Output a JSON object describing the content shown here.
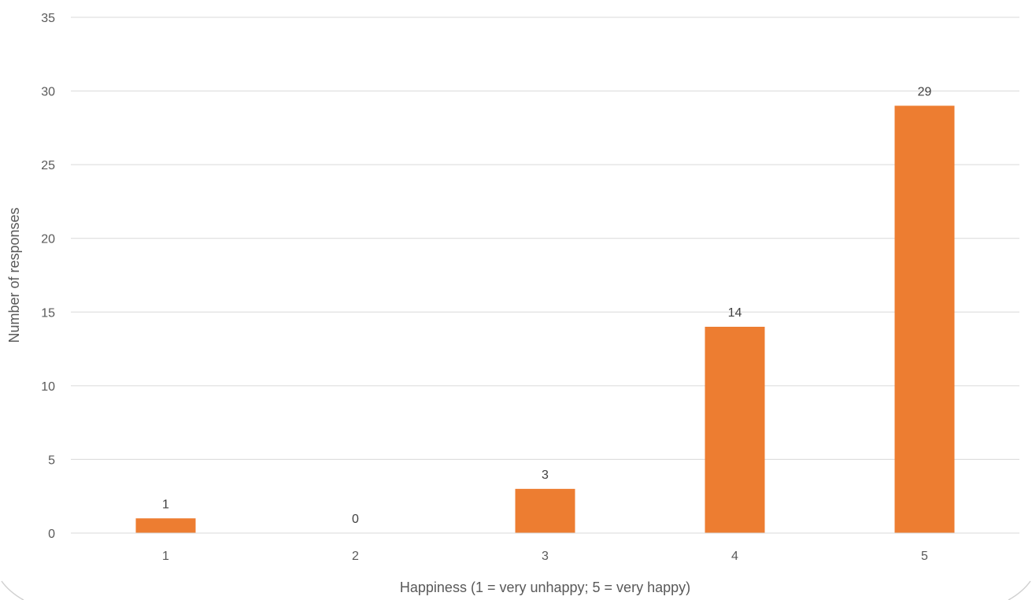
{
  "chart_data": {
    "type": "bar",
    "categories": [
      "1",
      "2",
      "3",
      "4",
      "5"
    ],
    "values": [
      1,
      0,
      3,
      14,
      29
    ],
    "data_labels": [
      "1",
      "0",
      "3",
      "14",
      "29"
    ],
    "title": "",
    "xlabel": "Happiness (1 = very unhappy; 5 = very happy)",
    "ylabel": "Number of responses",
    "ylim": [
      0,
      35
    ],
    "yticks": [
      0,
      5,
      10,
      15,
      20,
      25,
      30,
      35
    ],
    "ytick_labels": [
      "0",
      "5",
      "10",
      "15",
      "20",
      "25",
      "30",
      "35"
    ],
    "grid": true,
    "legend": "none",
    "bar_color": "#ED7D31"
  }
}
